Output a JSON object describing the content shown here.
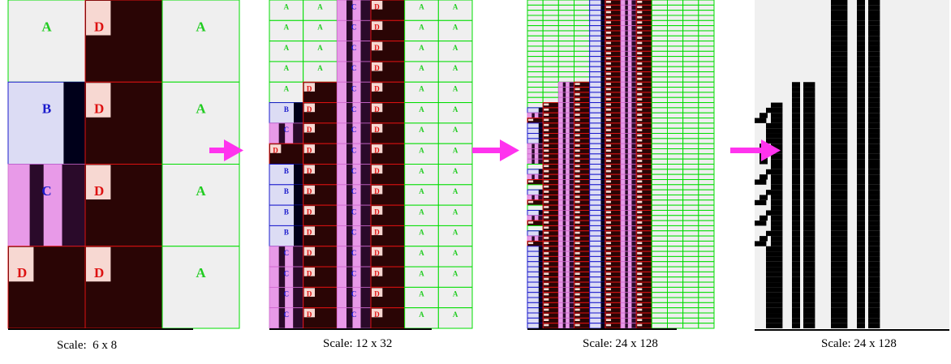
{
  "panels": [
    {
      "caption": "Scale:  6 x 8"
    },
    {
      "caption": "Scale: 12 x 32"
    },
    {
      "caption": "Scale: 24 x 128"
    },
    {
      "caption": "Scale: 24 x 128"
    }
  ],
  "tile_letters": {
    "a": "A",
    "b": "B",
    "c": "C",
    "d": "D"
  },
  "colors": {
    "a_fill": "#efefef",
    "a_line": "#00dd00",
    "a_text": "#22cc22",
    "b_fill": "#dcdcf4",
    "b_line": "#1a1acc",
    "b_text": "#1a1acc",
    "b_dark": "#00001a",
    "c_fill": "#e89ae8",
    "c_dark": "#2a0a2a",
    "c_text": "#1a1acc",
    "d_fill": "#2a0505",
    "d_light": "#f7d8d2",
    "d_line": "#dd1111",
    "d_text": "#dd1111",
    "arrow": "#ff33ee",
    "black": "#000000",
    "gray_bg": "#f0f0f0"
  }
}
